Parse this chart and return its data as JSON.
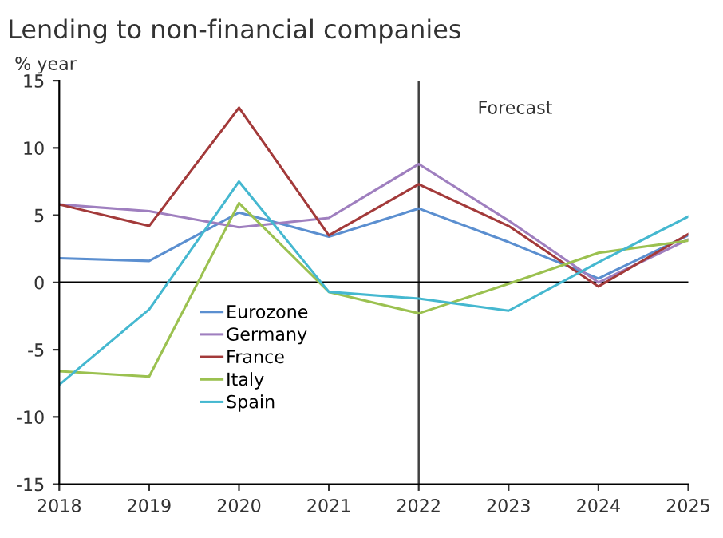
{
  "chart_data": {
    "type": "line",
    "title": "Lending to non-financial companies",
    "ylabel": "% year",
    "x": [
      2018,
      2019,
      2020,
      2021,
      2022,
      2023,
      2024,
      2025
    ],
    "series": [
      {
        "name": "Eurozone",
        "color": "#5b8fd0",
        "values": [
          1.8,
          1.6,
          5.2,
          3.4,
          5.5,
          3.0,
          0.3,
          3.5
        ]
      },
      {
        "name": "Germany",
        "color": "#9f7fbf",
        "values": [
          5.8,
          5.3,
          4.1,
          4.8,
          8.8,
          4.6,
          0.0,
          3.2
        ]
      },
      {
        "name": "France",
        "color": "#a33a3a",
        "values": [
          5.8,
          4.2,
          13.0,
          3.5,
          7.3,
          4.2,
          -0.3,
          3.6
        ]
      },
      {
        "name": "Italy",
        "color": "#9bc150",
        "values": [
          -6.6,
          -7.0,
          5.9,
          -0.7,
          -2.3,
          -0.1,
          2.2,
          3.1
        ]
      },
      {
        "name": "Spain",
        "color": "#45b8d0",
        "values": [
          -7.6,
          -2.0,
          7.5,
          -0.7,
          -1.2,
          -2.1,
          1.5,
          4.9
        ]
      }
    ],
    "xlim": [
      2018,
      2025
    ],
    "xticks": [
      2018,
      2019,
      2020,
      2021,
      2022,
      2023,
      2024,
      2025
    ],
    "ylim": [
      -15,
      15
    ],
    "yticks": [
      -15,
      -10,
      -5,
      0,
      5,
      10,
      15
    ],
    "ref_lines": [
      {
        "axis": "x",
        "value": 2022,
        "color": "#404040"
      },
      {
        "axis": "y",
        "value": 0,
        "color": "#000000"
      }
    ],
    "annotations": [
      "Forecast"
    ],
    "legend": "bottom left",
    "grid": false,
    "marker": "none",
    "line_style": "solid"
  }
}
